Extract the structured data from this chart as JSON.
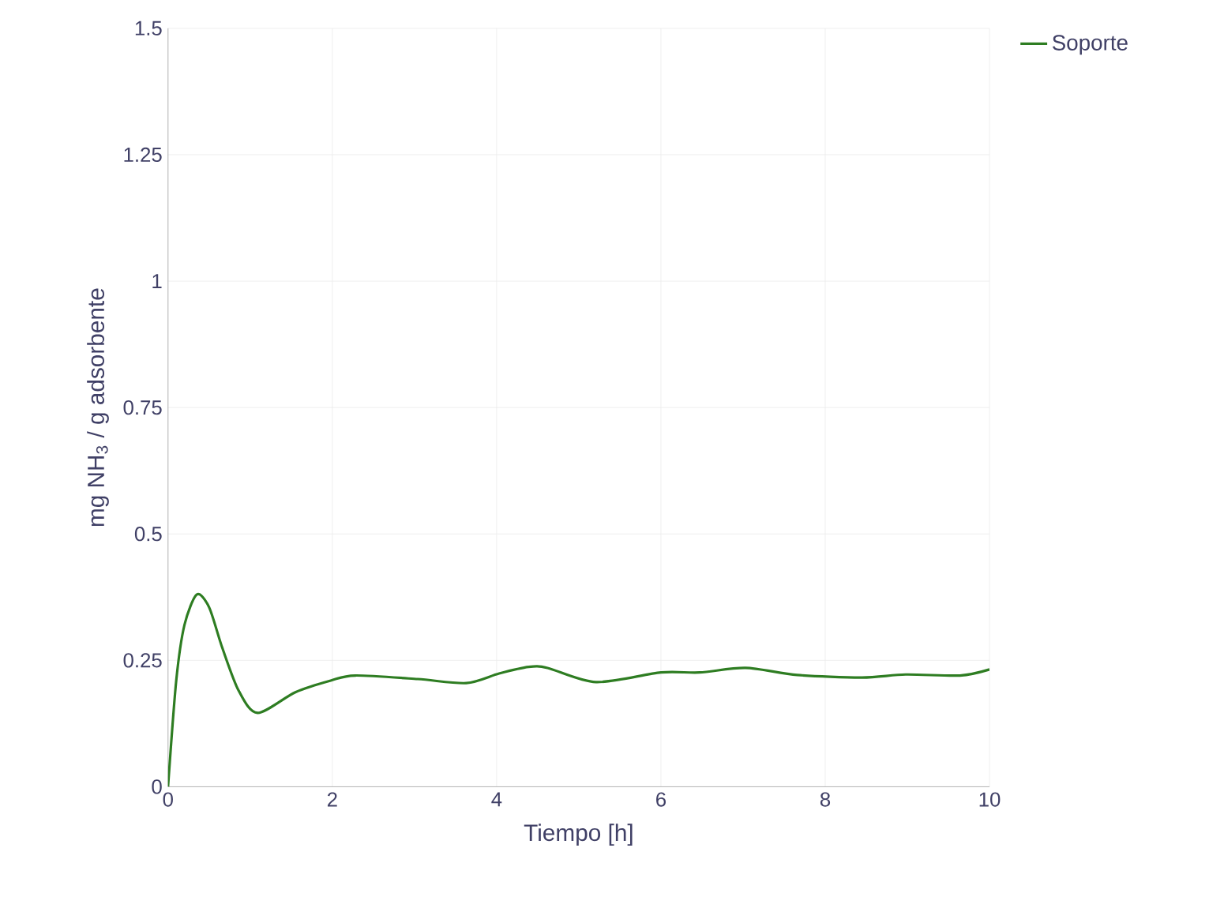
{
  "chart_data": {
    "type": "line",
    "xlabel": "Tiempo [h]",
    "ylabel": "mg NH$_{3}$ / g adsorbente",
    "series": [
      {
        "name": "Soporte",
        "color": "#2e7d22",
        "x": [
          0,
          0.1,
          0.2,
          0.35,
          0.5,
          0.66,
          0.86,
          1.09,
          1.55,
          1.98,
          2.28,
          3.04,
          3.63,
          4.03,
          4.39,
          4.62,
          5.21,
          6.0,
          6.47,
          7.03,
          7.66,
          8.45,
          8.98,
          9.64,
          10
        ],
        "values": [
          0,
          0.21,
          0.32,
          0.38,
          0.355,
          0.275,
          0.19,
          0.146,
          0.187,
          0.21,
          0.22,
          0.213,
          0.205,
          0.224,
          0.237,
          0.235,
          0.207,
          0.226,
          0.226,
          0.235,
          0.221,
          0.216,
          0.222,
          0.22,
          0.232
        ]
      }
    ],
    "xlim": [
      0,
      10
    ],
    "xticks": [
      0,
      2,
      4,
      6,
      8,
      10
    ],
    "ylim": [
      0,
      1.5
    ],
    "yticks": [
      0,
      0.25,
      0.5,
      0.75,
      1,
      1.25,
      1.5
    ],
    "grid": true,
    "legend": "top right",
    "marker": "none",
    "line_style": "solid"
  }
}
